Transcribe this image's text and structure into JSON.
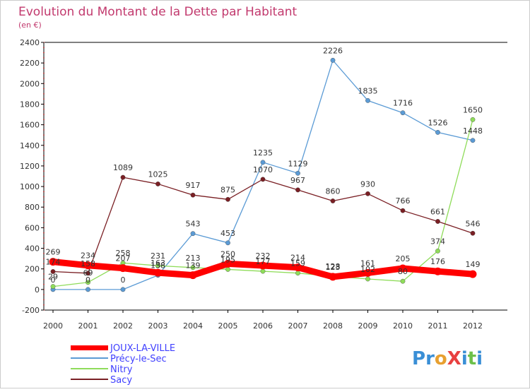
{
  "chart_data": {
    "type": "line",
    "title": "Evolution du Montant de la Dette par Habitant",
    "subtitle": "(en €)",
    "xlabel": "",
    "ylabel": "",
    "x": [
      "2000",
      "2001",
      "2002",
      "2003",
      "2004",
      "2005",
      "2006",
      "2007",
      "2008",
      "2009",
      "2010",
      "2011",
      "2012"
    ],
    "yticks": [
      -200,
      0,
      200,
      400,
      600,
      800,
      1000,
      1200,
      1400,
      1600,
      1800,
      2000,
      2200,
      2400
    ],
    "ylim": [
      -200,
      2400
    ],
    "grid": false,
    "legend_position": "bottom-left",
    "series": [
      {
        "name": "JOUX-LA-VILLE",
        "color": "#ff0000",
        "values": [
          269,
          234,
          207,
          163,
          139,
          250,
          232,
          214,
          123,
          161,
          205,
          176,
          149
        ],
        "labels": [
          "269",
          "234",
          "207",
          "163",
          "139",
          "250",
          "232",
          "214",
          "123",
          "161",
          "205",
          "176",
          "149"
        ]
      },
      {
        "name": "Précy-le-Sec",
        "color": "#5b9bd5",
        "values": [
          0,
          0,
          0,
          138,
          543,
          453,
          1235,
          1129,
          2226,
          1835,
          1716,
          1526,
          1448
        ],
        "labels": [
          "0",
          "0",
          "0",
          "138",
          "543",
          "453",
          "1235",
          "1129",
          "2226",
          "1835",
          "1716",
          "1526",
          "1448"
        ]
      },
      {
        "name": "Nitry",
        "color": "#8fdc5a",
        "values": [
          29,
          69,
          258,
          231,
          213,
          195,
          177,
          159,
          128,
          102,
          80,
          374,
          1650
        ],
        "labels": [
          "29",
          "69",
          "258",
          "231",
          "213",
          "195",
          "177",
          "159",
          "128",
          "102",
          "80",
          "374",
          "1650"
        ]
      },
      {
        "name": "Sacy",
        "color": "#7a1f24",
        "values": [
          174,
          158,
          1089,
          1025,
          917,
          875,
          1070,
          967,
          860,
          930,
          766,
          661,
          546
        ],
        "labels": [
          "174",
          "158",
          "1089",
          "1025",
          "917",
          "875",
          "1070",
          "967",
          "860",
          "930",
          "766",
          "661",
          "546"
        ]
      }
    ]
  },
  "legend": {
    "items": [
      {
        "label": "JOUX-LA-VILLE",
        "color": "#ff0000"
      },
      {
        "label": "Précy-le-Sec",
        "color": "#5b9bd5"
      },
      {
        "label": "Nitry",
        "color": "#8fdc5a"
      },
      {
        "label": "Sacy",
        "color": "#7a1f24"
      }
    ]
  },
  "logo": {
    "text": "ProXiti"
  }
}
